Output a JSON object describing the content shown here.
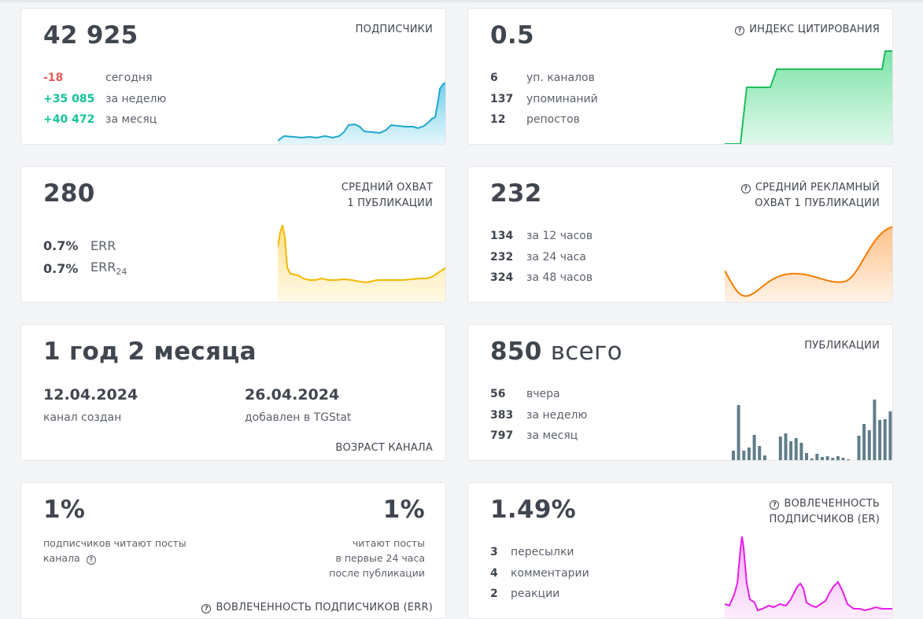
{
  "subscribers": {
    "value": "42 925",
    "title": "ПОДПИСЧИКИ",
    "today_value": "-18",
    "today_label": "сегодня",
    "week_value": "+35 085",
    "week_label": "за неделю",
    "month_value": "+40 472",
    "month_label": "за месяц",
    "color": "#1ea7cf"
  },
  "citation": {
    "value": "0.5",
    "title": "ИНДЕКС ЦИТИРОВАНИЯ",
    "channels_value": "6",
    "channels_label": "уп. каналов",
    "mentions_value": "137",
    "mentions_label": "упоминаний",
    "reposts_value": "12",
    "reposts_label": "репостов",
    "color": "#1dbf5a"
  },
  "reach": {
    "value": "280",
    "title_line1": "СРЕДНИЙ ОХВАТ",
    "title_line2": "1 ПУБЛИКАЦИИ",
    "err_value": "0.7%",
    "err_label": "ERR",
    "err24_value": "0.7%",
    "err24_label": "ERR",
    "err24_sub": "24",
    "color": "#f5b800"
  },
  "ad_reach": {
    "value": "232",
    "title_line1": "СРЕДНИЙ РЕКЛАМНЫЙ",
    "title_line2": "ОХВАТ 1 ПУБЛИКАЦИИ",
    "h12_value": "134",
    "h12_label": "за 12 часов",
    "h24_value": "232",
    "h24_label": "за 24 часа",
    "h48_value": "324",
    "h48_label": "за 48 часов",
    "color": "#f57c00"
  },
  "age": {
    "value": "1 год 2 месяца",
    "created_date": "12.04.2024",
    "created_label": "канал создан",
    "added_date": "26.04.2024",
    "added_label": "добавлен в TGStat",
    "title": "ВОЗРАСТ КАНАЛА"
  },
  "publications": {
    "value": "850",
    "value_suffix": "всего",
    "title": "ПУБЛИКАЦИИ",
    "yesterday_value": "56",
    "yesterday_label": "вчера",
    "week_value": "383",
    "week_label": "за неделю",
    "month_value": "797",
    "month_label": "за месяц",
    "bar_values": [
      14,
      72,
      14,
      18,
      34,
      20,
      8,
      0,
      2,
      32,
      36,
      26,
      30,
      24,
      11,
      4,
      10,
      6,
      7,
      5,
      7,
      5,
      3,
      0,
      33,
      48,
      40,
      79,
      53,
      54,
      64
    ],
    "color": "#607d8b"
  },
  "err": {
    "left_value": "1%",
    "left_label_line1": "подписчиков читают посты",
    "left_label_line2": "канала",
    "right_value": "1%",
    "right_label_line1": "читают посты",
    "right_label_line2": "в первые 24 часа",
    "right_label_line3": "после публикации",
    "title": "ВОВЛЕЧЕННОСТЬ ПОДПИСЧИКОВ (ERR)"
  },
  "er": {
    "value": "1.49%",
    "title_line1": "ВОВЛЕЧЕННОСТЬ",
    "title_line2": "ПОДПИСЧИКОВ (ER)",
    "forwards_value": "3",
    "forwards_label": "пересылки",
    "comments_value": "4",
    "comments_label": "комментарии",
    "reactions_value": "2",
    "reactions_label": "реакции",
    "color": "#e81ee8"
  }
}
